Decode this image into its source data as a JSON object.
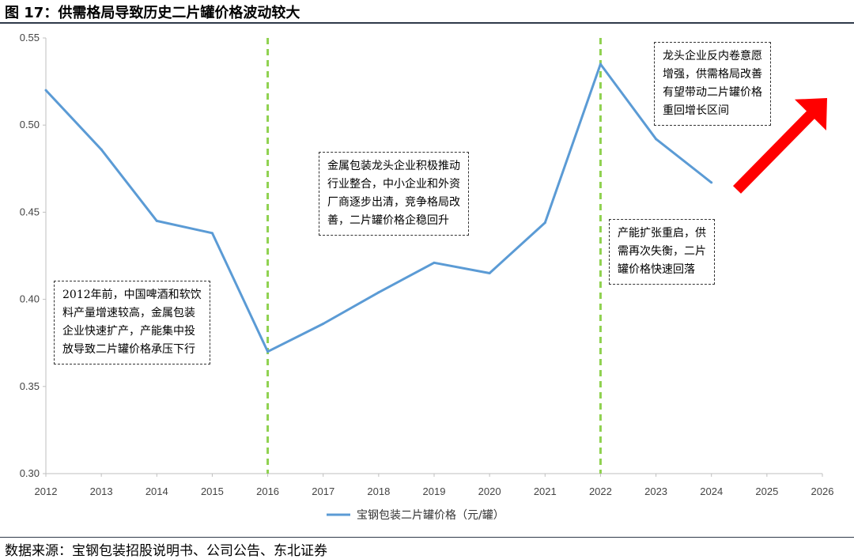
{
  "header": {
    "title": "图 17：供需格局导致历史二片罐价格波动较大"
  },
  "footer": {
    "source": "数据来源：宝钢包装招股说明书、公司公告、东北证券"
  },
  "colors": {
    "line": "#5b9bd5",
    "vline": "#8fd14f",
    "arrow": "#ff0000",
    "axis": "#bfbfbf"
  },
  "chart_data": {
    "type": "line",
    "x_ticks": [
      2012,
      2013,
      2014,
      2015,
      2016,
      2017,
      2018,
      2019,
      2020,
      2021,
      2022,
      2023,
      2024,
      2025,
      2026
    ],
    "y_ticks": [
      "0.30",
      "0.35",
      "0.40",
      "0.45",
      "0.50",
      "0.55"
    ],
    "xlim": [
      2012,
      2026
    ],
    "ylim": [
      0.3,
      0.55
    ],
    "series": [
      {
        "name": "宝钢包装二片罐价格（元/罐）",
        "x": [
          2012,
          2013,
          2014,
          2015,
          2016,
          2017,
          2018,
          2019,
          2020,
          2021,
          2022,
          2023,
          2024
        ],
        "y": [
          0.52,
          0.486,
          0.445,
          0.438,
          0.37,
          0.386,
          0.404,
          0.421,
          0.415,
          0.444,
          0.535,
          0.492,
          0.467
        ]
      }
    ],
    "vertical_lines": [
      2016,
      2022
    ],
    "legend_position": "bottom-center",
    "grid": false,
    "annotations": [
      {
        "lines": [
          "2012年前，中国啤酒和软饮",
          "料产量增速较高，金属包装",
          "企业快速扩产，产能集中投",
          "放导致二片罐价格承压下行"
        ]
      },
      {
        "lines": [
          "金属包装龙头企业积极推动",
          "行业整合，中小企业和外资",
          "厂商逐步出清，竞争格局改",
          "善，二片罐价格企稳回升"
        ]
      },
      {
        "lines": [
          "产能扩张重启，供",
          "需再次失衡，二片",
          "罐价格快速回落"
        ]
      },
      {
        "lines": [
          "龙头企业反内卷意愿",
          "增强，供需格局改善",
          "有望带动二片罐价格",
          "重回增长区间"
        ]
      }
    ]
  }
}
